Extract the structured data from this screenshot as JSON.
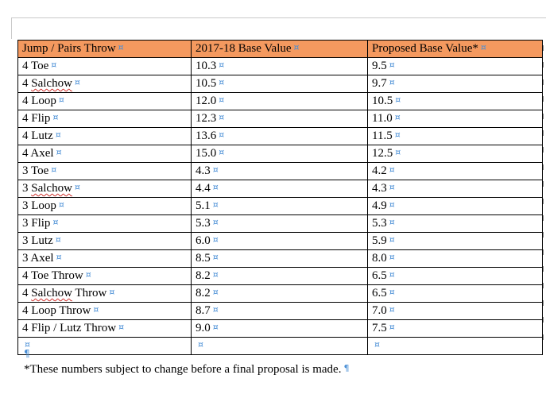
{
  "table": {
    "headers": [
      "Jump / Pairs Throw",
      "2017-18 Base Value",
      "Proposed Base Value*"
    ],
    "rows": [
      [
        "4 Toe",
        "10.3",
        "9.5"
      ],
      [
        "4 Salchow",
        "10.5",
        "9.7"
      ],
      [
        "4 Loop",
        "12.0",
        "10.5"
      ],
      [
        "4 Flip",
        "12.3",
        "11.0"
      ],
      [
        "4 Lutz",
        "13.6",
        "11.5"
      ],
      [
        "4 Axel",
        "15.0",
        "12.5"
      ],
      [
        "3 Toe",
        "4.3",
        "4.2"
      ],
      [
        "3 Salchow",
        "4.4",
        "4.3"
      ],
      [
        "3 Loop",
        "5.1",
        "4.9"
      ],
      [
        "3 Flip",
        "5.3",
        "5.3"
      ],
      [
        "3 Lutz",
        "6.0",
        "5.9"
      ],
      [
        "3 Axel",
        "8.5",
        "8.0"
      ],
      [
        "4 Toe Throw",
        "8.2",
        "6.5"
      ],
      [
        "4 Salchow Throw",
        "8.2",
        "6.5"
      ],
      [
        "4 Loop Throw",
        "8.7",
        "7.0"
      ],
      [
        "4 Flip / Lutz Throw",
        "9.0",
        "7.5"
      ],
      [
        "",
        "",
        ""
      ]
    ]
  },
  "marks": {
    "cell_end": "¤",
    "pilcrow": "¶",
    "space_dot": "·"
  },
  "footnote": "*These numbers subject to change before a final proposal is made.",
  "colors": {
    "header_fill": "#f4995f",
    "formatting_marks": "#4a8fd6"
  }
}
